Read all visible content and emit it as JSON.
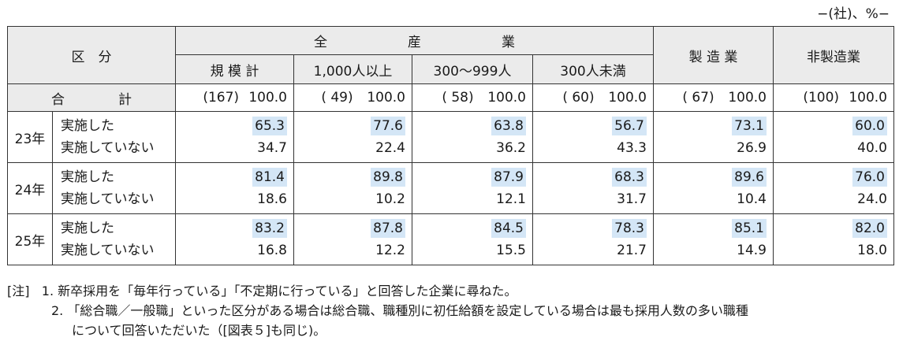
{
  "unit_note": "−(社)、%−",
  "header": {
    "category": "区　分",
    "all_industries": "全　　　　　　産　　　　　　業",
    "sub": [
      "規 模 計",
      "1,000人以上",
      "300〜999人",
      "300人未満"
    ],
    "manufacturing": "製 造 業",
    "non_manufacturing": "非製造業"
  },
  "total": {
    "label": "合　　　　計",
    "counts": [
      "(167)",
      "( 49)",
      "( 58)",
      "( 60)",
      "( 67)",
      "(100)"
    ],
    "values": [
      "100.0",
      "100.0",
      "100.0",
      "100.0",
      "100.0",
      "100.0"
    ]
  },
  "years": [
    {
      "year": "23年",
      "implemented_label": "実施した",
      "not_implemented_label": "実施していない",
      "implemented": [
        "65.3",
        "77.6",
        "63.8",
        "56.7",
        "73.1",
        "60.0"
      ],
      "not_implemented": [
        "34.7",
        "22.4",
        "36.2",
        "43.3",
        "26.9",
        "40.0"
      ]
    },
    {
      "year": "24年",
      "implemented_label": "実施した",
      "not_implemented_label": "実施していない",
      "implemented": [
        "81.4",
        "89.8",
        "87.9",
        "68.3",
        "89.6",
        "76.0"
      ],
      "not_implemented": [
        "18.6",
        "10.2",
        "12.1",
        "31.7",
        "10.4",
        "24.0"
      ]
    },
    {
      "year": "25年",
      "implemented_label": "実施した",
      "not_implemented_label": "実施していない",
      "implemented": [
        "83.2",
        "87.8",
        "84.5",
        "78.3",
        "85.1",
        "82.0"
      ],
      "not_implemented": [
        "16.8",
        "12.2",
        "15.5",
        "21.7",
        "14.9",
        "18.0"
      ]
    }
  ],
  "notes": {
    "tag": "[注]",
    "line1": "1. 新卒採用を「毎年行っている」「不定期に行っている」と回答した企業に尋ねた。",
    "line2": "2. 「総合職／一般職」といった区分がある場合は総合職、職種別に初任給額を設定している場合は最も採用人数の多い職種",
    "line3": "について回答いただいた（[図表５]も同じ)。"
  },
  "colors": {
    "highlight": "#d4e6f6",
    "header_bg": "#ebebeb",
    "border": "#333333"
  }
}
